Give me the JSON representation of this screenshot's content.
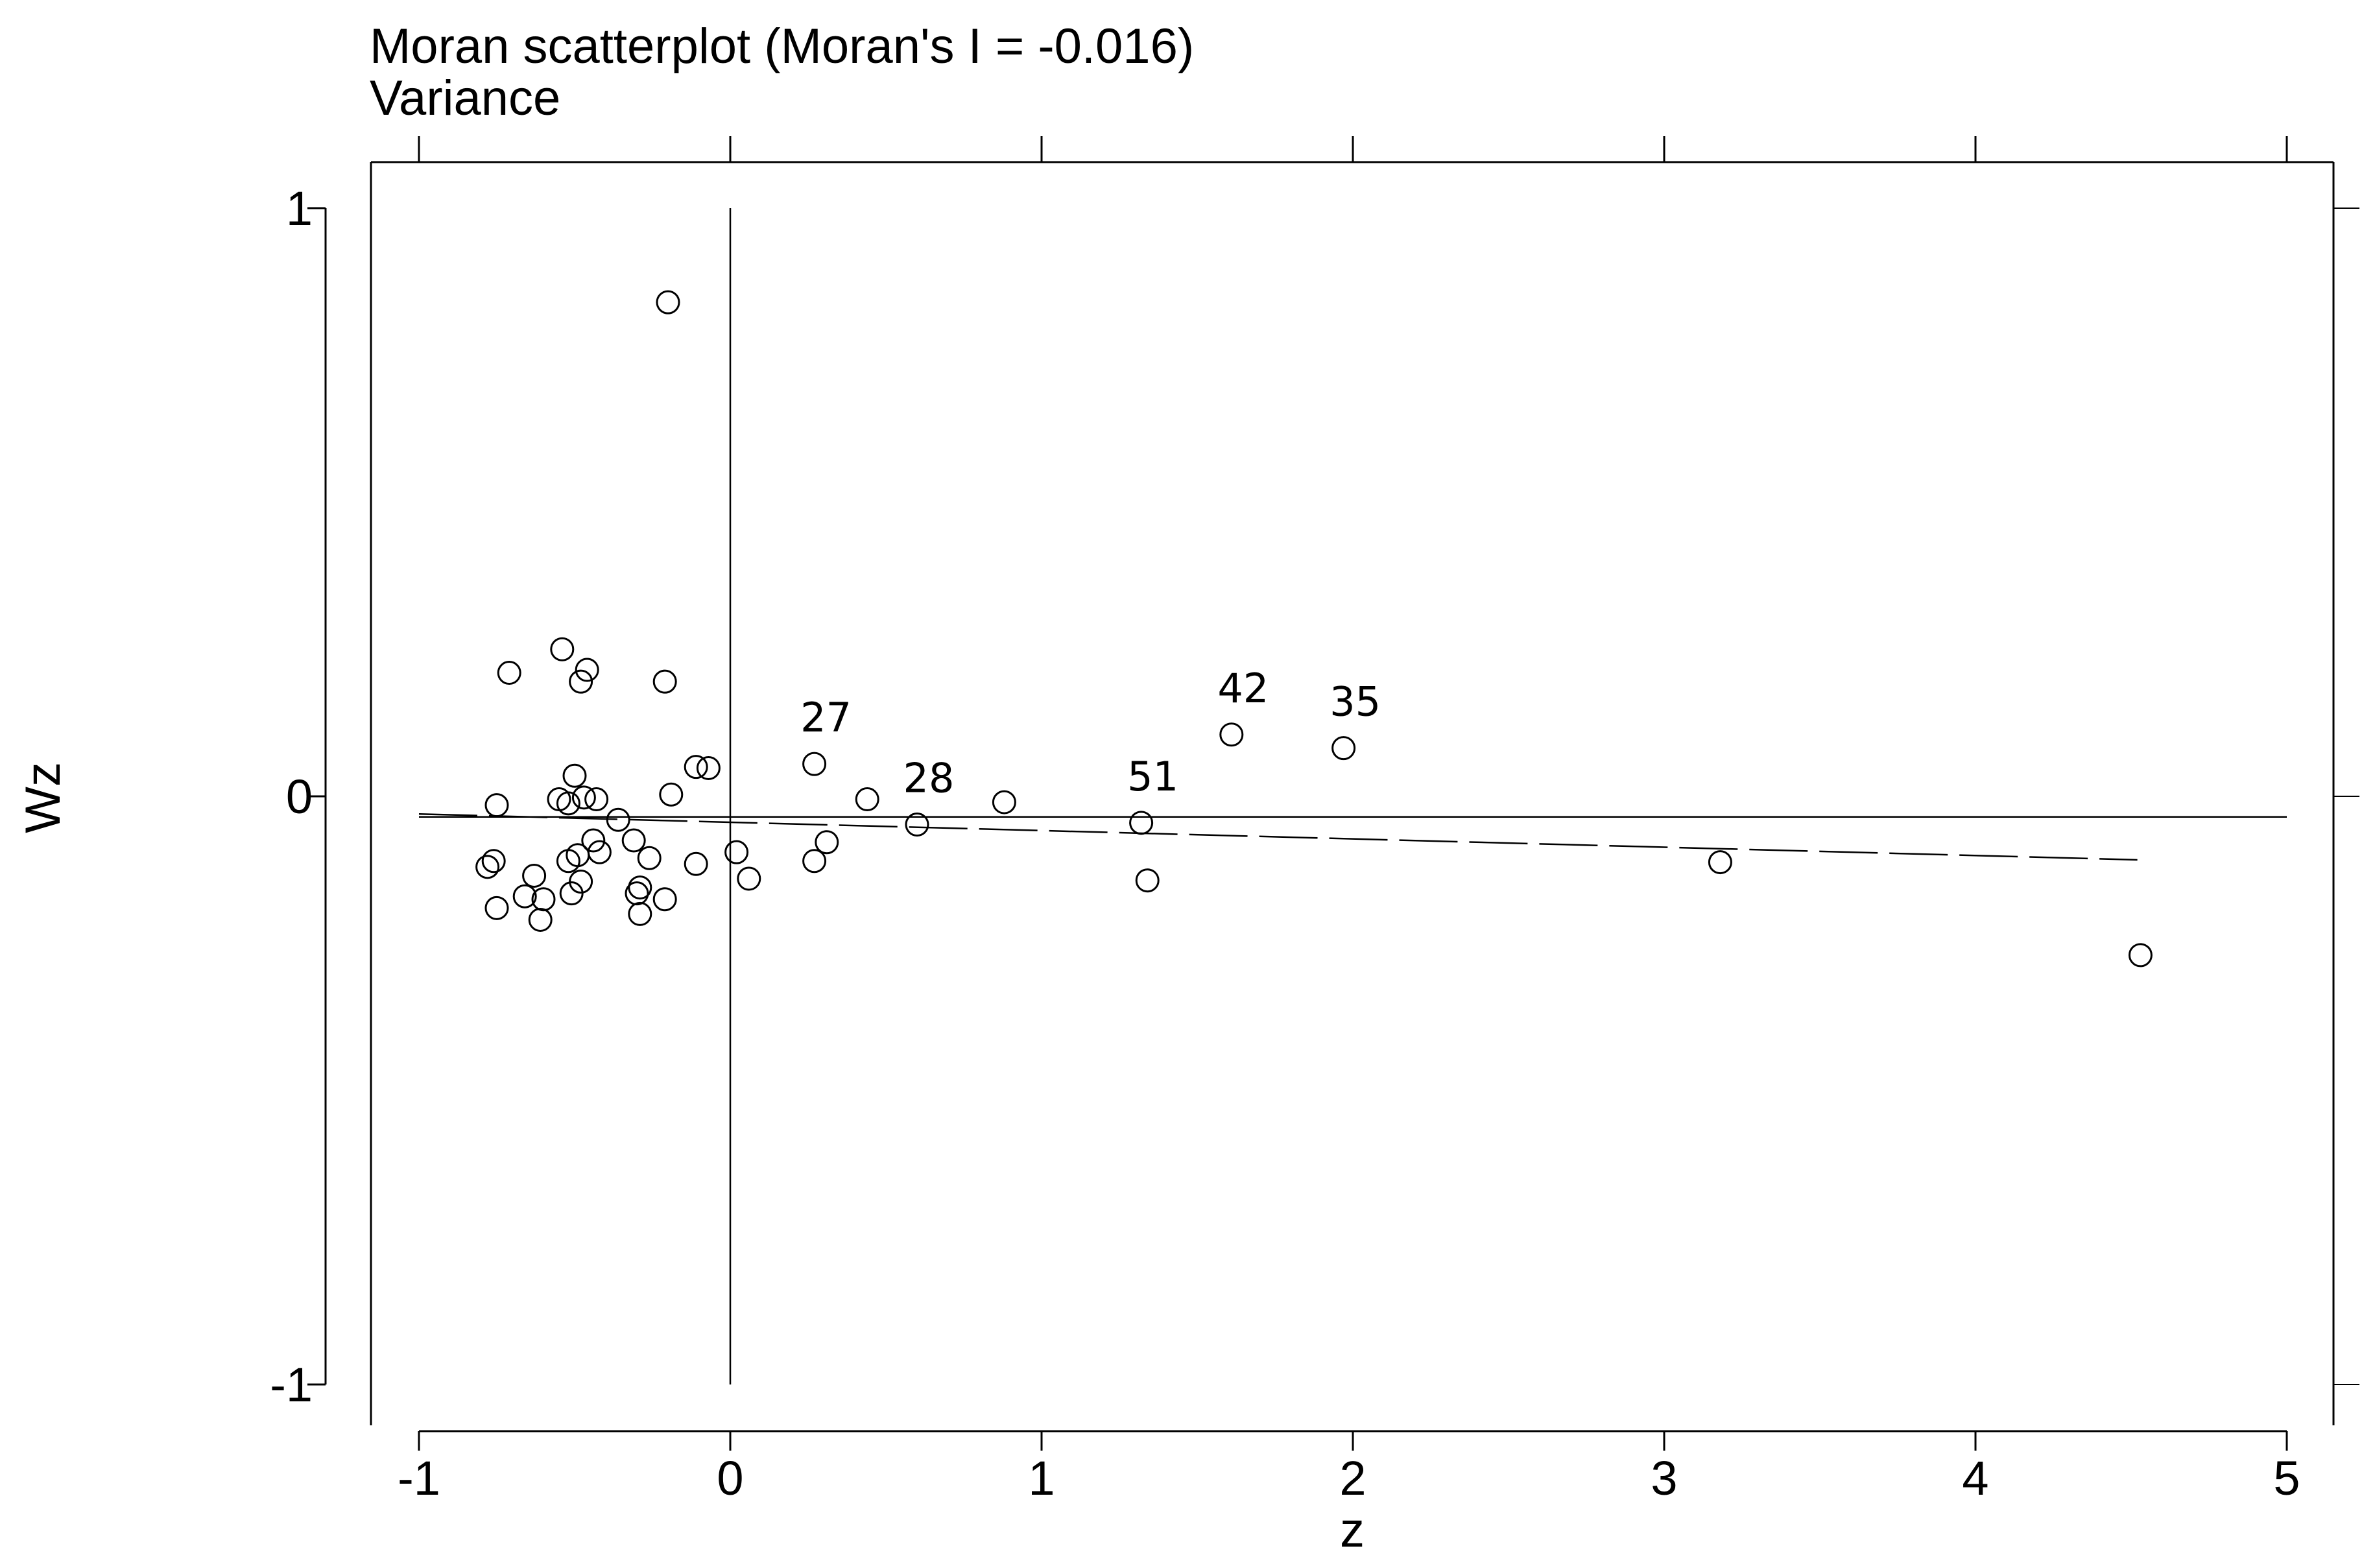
{
  "chart_data": {
    "type": "scatter",
    "title": "Moran scatterplot (Moran's I = -0.016)",
    "subtitle": "Variance",
    "xlabel": "z",
    "ylabel": "Wz",
    "xlim": [
      -1.15,
      5.15
    ],
    "ylim": [
      -1.07,
      1.08
    ],
    "x_ticks": [
      -1,
      0,
      1,
      2,
      3,
      4,
      5
    ],
    "x_tick_labels": [
      "-1",
      "0",
      "1",
      "2",
      "3",
      "4",
      "5"
    ],
    "y_ticks": [
      -1,
      0,
      1
    ],
    "y_tick_labels": [
      "-1",
      "0",
      "1"
    ],
    "grid": false,
    "reference_lines": {
      "vertical_x": 0,
      "horizontal_y": -0.035
    },
    "fit_line": {
      "style": "dashed",
      "x": [
        -1.0,
        4.52
      ],
      "y": [
        -0.03,
        -0.108
      ]
    },
    "points": [
      {
        "x": -0.2,
        "y": 0.84
      },
      {
        "x": -0.54,
        "y": 0.25
      },
      {
        "x": -0.71,
        "y": 0.21
      },
      {
        "x": -0.46,
        "y": 0.215
      },
      {
        "x": -0.48,
        "y": 0.195
      },
      {
        "x": -0.21,
        "y": 0.195
      },
      {
        "x": -0.5,
        "y": 0.035
      },
      {
        "x": -0.11,
        "y": 0.05
      },
      {
        "x": -0.07,
        "y": 0.048
      },
      {
        "x": -0.19,
        "y": 0.003
      },
      {
        "x": -0.55,
        "y": -0.005
      },
      {
        "x": -0.52,
        "y": -0.012
      },
      {
        "x": -0.47,
        "y": -0.002
      },
      {
        "x": -0.43,
        "y": -0.005
      },
      {
        "x": -0.75,
        "y": -0.015
      },
      {
        "x": -0.36,
        "y": -0.04
      },
      {
        "x": -0.44,
        "y": -0.075
      },
      {
        "x": -0.31,
        "y": -0.075
      },
      {
        "x": -0.42,
        "y": -0.095
      },
      {
        "x": -0.49,
        "y": -0.1
      },
      {
        "x": -0.52,
        "y": -0.11
      },
      {
        "x": -0.76,
        "y": -0.11
      },
      {
        "x": -0.78,
        "y": -0.12
      },
      {
        "x": -0.26,
        "y": -0.105
      },
      {
        "x": -0.11,
        "y": -0.115
      },
      {
        "x": -0.63,
        "y": -0.135
      },
      {
        "x": -0.48,
        "y": -0.145
      },
      {
        "x": -0.29,
        "y": -0.155
      },
      {
        "x": -0.3,
        "y": -0.165
      },
      {
        "x": -0.51,
        "y": -0.165
      },
      {
        "x": -0.66,
        "y": -0.17
      },
      {
        "x": -0.6,
        "y": -0.175
      },
      {
        "x": -0.21,
        "y": -0.175
      },
      {
        "x": -0.75,
        "y": -0.19
      },
      {
        "x": -0.61,
        "y": -0.21
      },
      {
        "x": -0.29,
        "y": -0.2
      },
      {
        "x": 0.02,
        "y": -0.095
      },
      {
        "x": 0.06,
        "y": -0.14
      },
      {
        "x": 0.27,
        "y": -0.11
      },
      {
        "x": 0.31,
        "y": -0.078
      },
      {
        "x": 0.27,
        "y": 0.055,
        "label": "27"
      },
      {
        "x": 0.44,
        "y": -0.005
      },
      {
        "x": 0.6,
        "y": -0.048,
        "label": "28"
      },
      {
        "x": 0.88,
        "y": -0.01
      },
      {
        "x": 1.32,
        "y": -0.045,
        "label": "51"
      },
      {
        "x": 1.34,
        "y": -0.143
      },
      {
        "x": 1.61,
        "y": 0.105,
        "label": "42"
      },
      {
        "x": 1.97,
        "y": 0.082,
        "label": "35"
      },
      {
        "x": 3.18,
        "y": -0.112
      },
      {
        "x": 4.53,
        "y": -0.27
      }
    ]
  }
}
